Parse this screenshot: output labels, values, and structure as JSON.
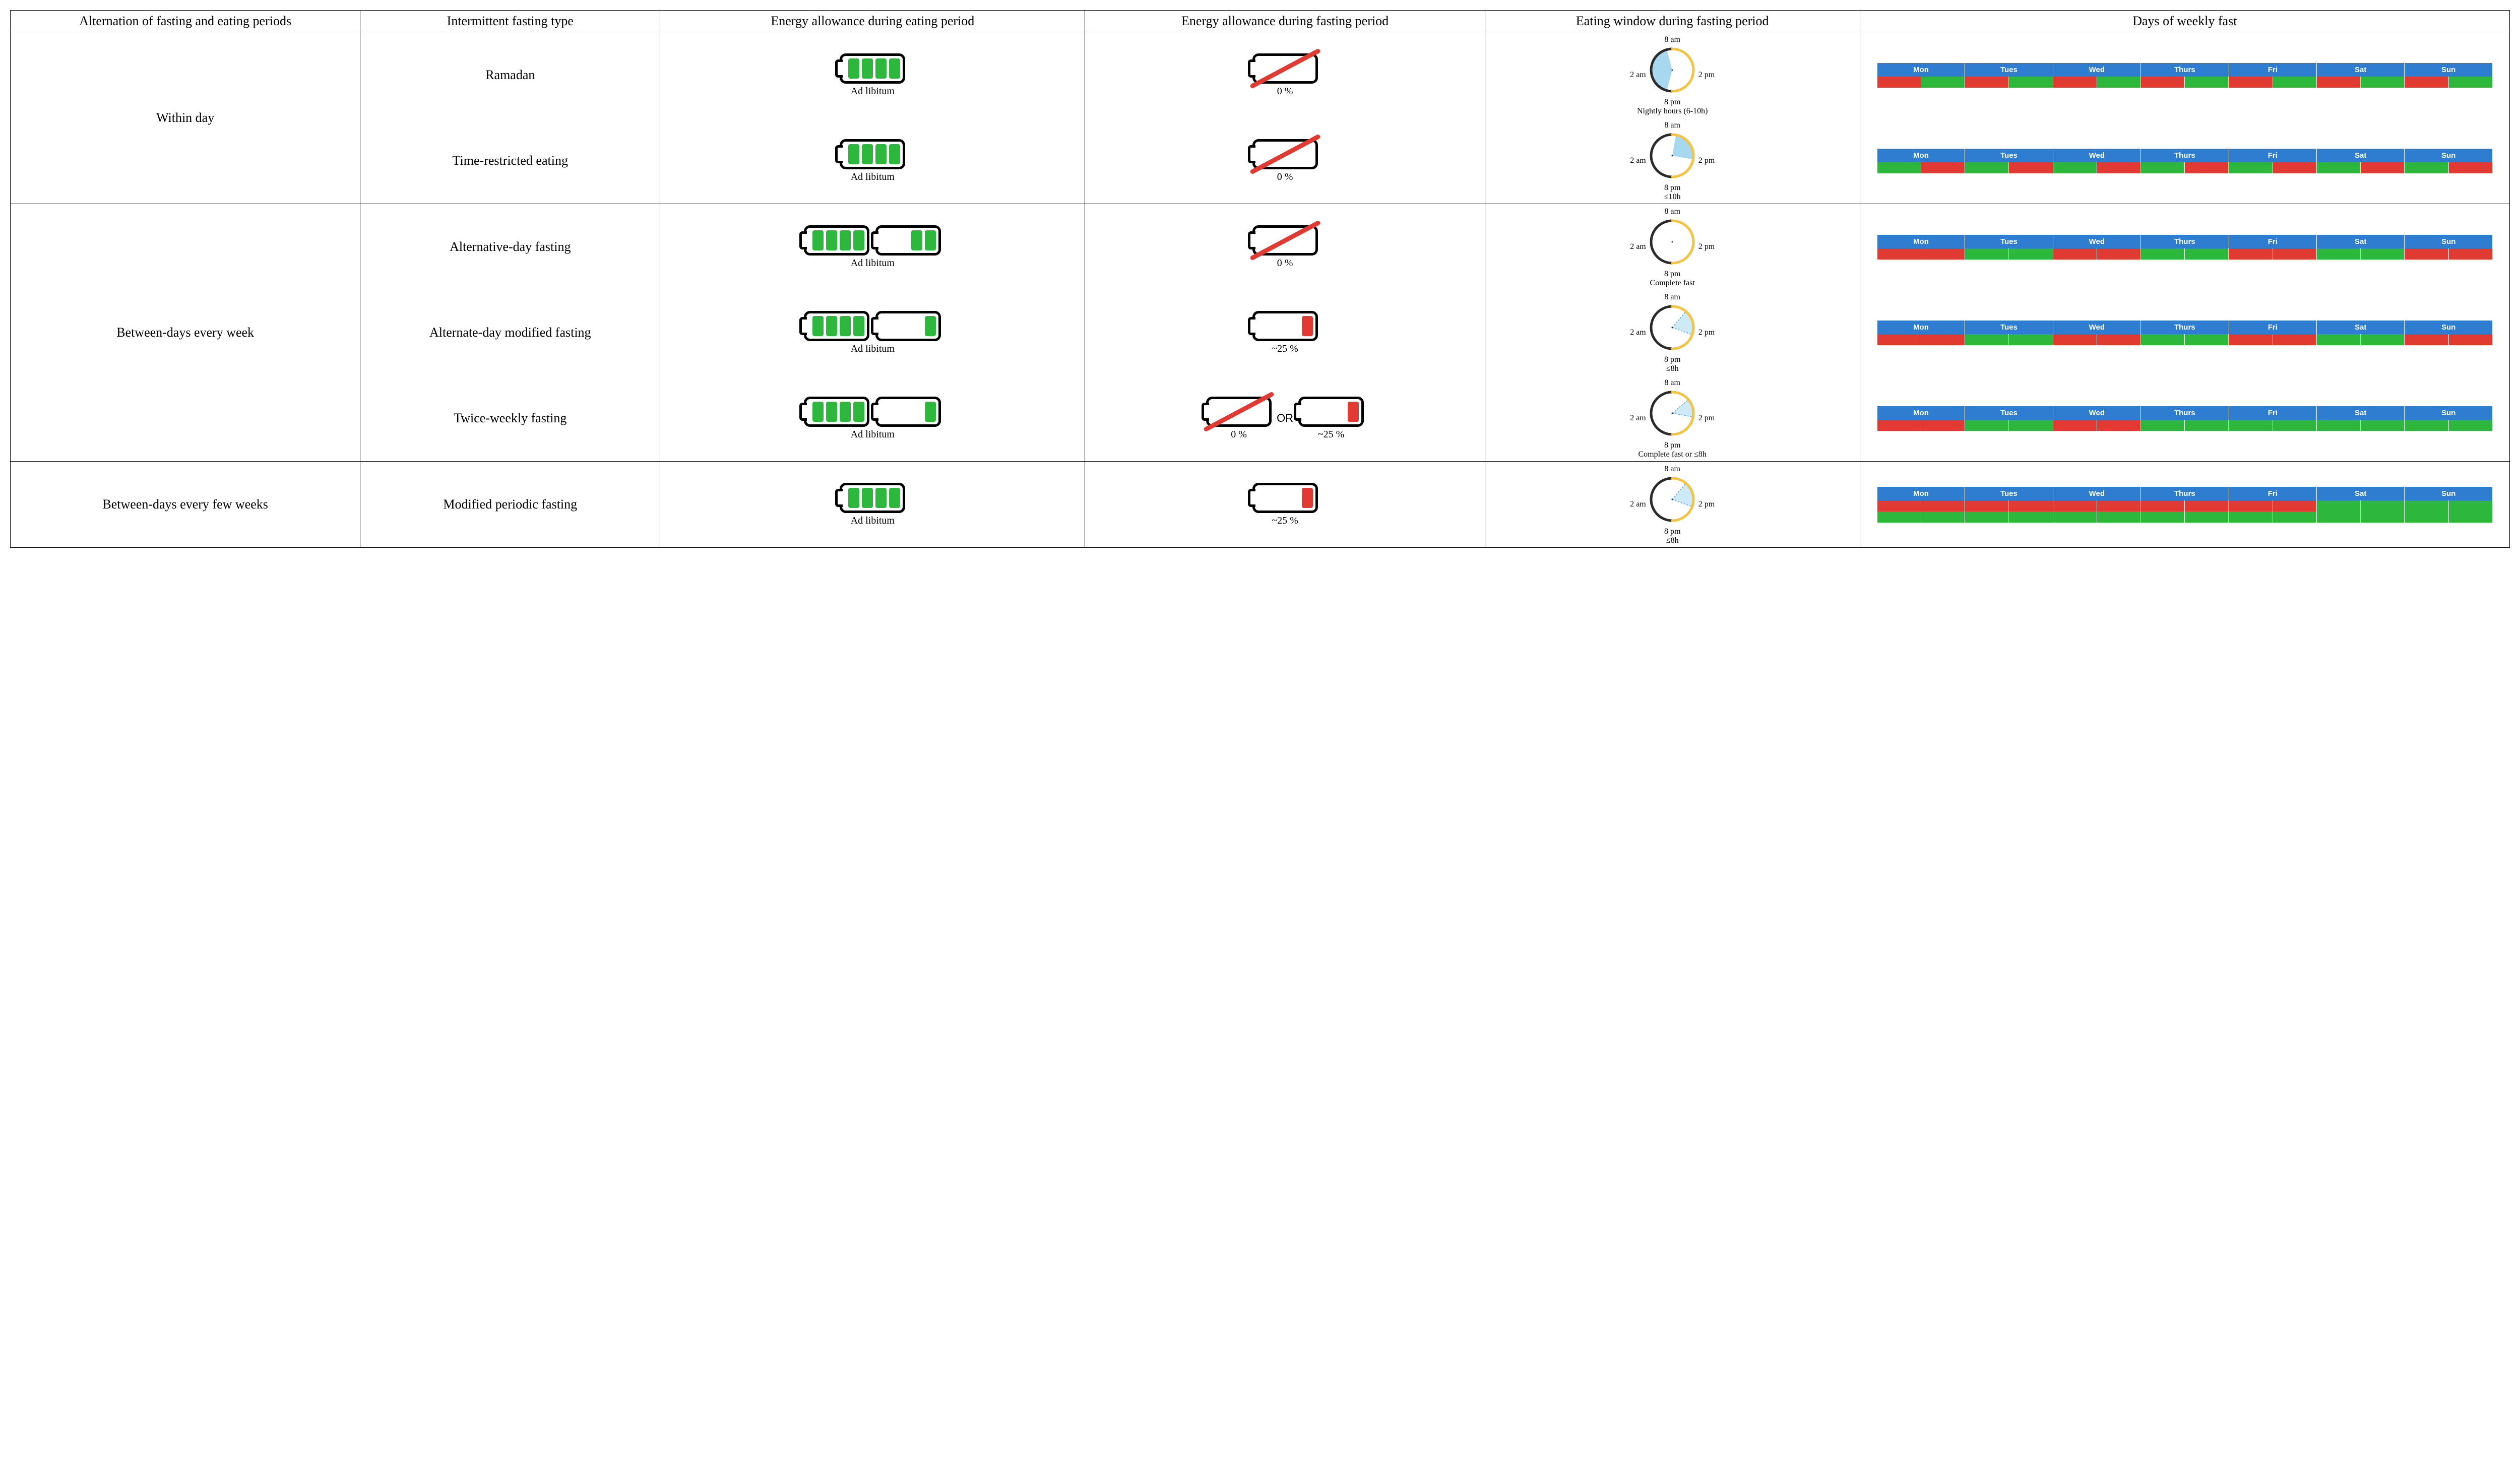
{
  "colors": {
    "green": "#2db83d",
    "red": "#e03a33",
    "blue": "#2f7dd1",
    "lightblue": "#a7d8f0",
    "yellow": "#f5c342",
    "dark": "#2b2b2b",
    "border": "#000000",
    "bg": "#ffffff"
  },
  "fonts": {
    "body_family": "Palatino Linotype",
    "body_size_pt": 20,
    "header_size_pt": 20,
    "caption_size_pt": 15,
    "week_label_size_pt": 11
  },
  "headers": [
    "Alternation of fasting and eating periods",
    "Intermittent fasting type",
    "Energy allowance during eating period",
    "Energy allowance during fasting period",
    "Eating window during fasting period",
    "Days of weekly fast"
  ],
  "week_days": [
    "Mon",
    "Tues",
    "Wed",
    "Thurs",
    "Fri",
    "Sat",
    "Sun"
  ],
  "clock_labels": {
    "top": "8 am",
    "right": "2 pm",
    "bottom": "8 pm",
    "left": "2 am"
  },
  "ad_libitum_label": "Ad libitum",
  "or_label": "OR",
  "groups": [
    {
      "label": "Within day",
      "rows": [
        {
          "type": "Ramadan",
          "eating": {
            "batteries": [
              {
                "cells": [
                  "g",
                  "g",
                  "g",
                  "g"
                ],
                "slash": false
              }
            ],
            "caption": "Ad libitum"
          },
          "fasting": {
            "batteries": [
              {
                "cells": [],
                "slash": true,
                "caption": "0 %"
              }
            ]
          },
          "window": {
            "style": "night",
            "caption": "Nightly hours (6-10h)",
            "wedge": {
              "start": 195,
              "end": 345,
              "fill": "#a7d8f0",
              "dashed": false
            }
          },
          "week": {
            "rows": [
              [
                "R",
                "G",
                "R",
                "G",
                "R",
                "G",
                "R",
                "G",
                "R",
                "G",
                "R",
                "G",
                "R",
                "G"
              ]
            ]
          }
        },
        {
          "type": "Time-restricted eating",
          "eating": {
            "batteries": [
              {
                "cells": [
                  "g",
                  "g",
                  "g",
                  "g"
                ],
                "slash": false
              }
            ],
            "caption": "Ad libitum"
          },
          "fasting": {
            "batteries": [
              {
                "cells": [],
                "slash": true,
                "caption": "0 %"
              }
            ]
          },
          "window": {
            "style": "slice",
            "caption": "≤10h",
            "wedge": {
              "start": 10,
              "end": 100,
              "fill": "#a7d8f0",
              "dashed": false
            }
          },
          "week": {
            "rows": [
              [
                "G",
                "R",
                "G",
                "R",
                "G",
                "R",
                "G",
                "R",
                "G",
                "R",
                "G",
                "R",
                "G",
                "R"
              ]
            ]
          }
        }
      ]
    },
    {
      "label": "Between-days every week",
      "rows": [
        {
          "type": "Alternative-day fasting",
          "eating": {
            "batteries": [
              {
                "cells": [
                  "g",
                  "g",
                  "g",
                  "g"
                ],
                "slash": false
              },
              {
                "cells": [
                  "g",
                  "g"
                ],
                "slash": false
              }
            ],
            "caption": "Ad libitum"
          },
          "fasting": {
            "batteries": [
              {
                "cells": [],
                "slash": true,
                "caption": "0 %"
              }
            ]
          },
          "window": {
            "style": "empty",
            "caption": "Complete fast",
            "wedge": null
          },
          "week": {
            "rows": [
              [
                "R",
                "R",
                "G",
                "G",
                "R",
                "R",
                "G",
                "G",
                "R",
                "R",
                "G",
                "G",
                "R",
                "R"
              ]
            ]
          }
        },
        {
          "type": "Alternate-day modified fasting",
          "eating": {
            "batteries": [
              {
                "cells": [
                  "g",
                  "g",
                  "g",
                  "g"
                ],
                "slash": false
              },
              {
                "cells": [
                  "g"
                ],
                "slash": false
              }
            ],
            "caption": "Ad libitum"
          },
          "fasting": {
            "batteries": [
              {
                "cells": [
                  "r"
                ],
                "slash": false,
                "caption": "~25 %"
              }
            ]
          },
          "window": {
            "style": "slice",
            "caption": "≤8h",
            "wedge": {
              "start": 40,
              "end": 110,
              "fill": "#a7d8f0",
              "dashed": true
            }
          },
          "week": {
            "rows": [
              [
                "R",
                "R",
                "G",
                "G",
                "R",
                "R",
                "G",
                "G",
                "R",
                "R",
                "G",
                "G",
                "R",
                "R"
              ]
            ]
          }
        },
        {
          "type": "Twice-weekly fasting",
          "eating": {
            "batteries": [
              {
                "cells": [
                  "g",
                  "g",
                  "g",
                  "g"
                ],
                "slash": false
              },
              {
                "cells": [
                  "g"
                ],
                "slash": false
              }
            ],
            "caption": "Ad libitum"
          },
          "fasting": {
            "batteries": [
              {
                "cells": [],
                "slash": true,
                "caption": "0 %"
              },
              {
                "cells": [
                  "r"
                ],
                "slash": false,
                "caption": "~25 %"
              }
            ],
            "or": true
          },
          "window": {
            "style": "slice",
            "caption": "Complete fast or ≤8h",
            "wedge": {
              "start": 50,
              "end": 100,
              "fill": "#a7d8f0",
              "dashed": true
            }
          },
          "week": {
            "rows": [
              [
                "R",
                "R",
                "G",
                "G",
                "R",
                "R",
                "G",
                "G",
                "G",
                "G",
                "G",
                "G",
                "G",
                "G"
              ]
            ]
          }
        }
      ]
    },
    {
      "label": "Between-days every few weeks",
      "rows": [
        {
          "type": "Modified periodic fasting",
          "type_hyphen": "Modified peri-\nodic fasting",
          "eating": {
            "batteries": [
              {
                "cells": [
                  "g",
                  "g",
                  "g",
                  "g"
                ],
                "slash": false
              }
            ],
            "caption": "Ad libitum"
          },
          "fasting": {
            "batteries": [
              {
                "cells": [
                  "r"
                ],
                "slash": false,
                "caption": "~25 %"
              }
            ]
          },
          "window": {
            "style": "slice",
            "caption": "≤8h",
            "wedge": {
              "start": 40,
              "end": 110,
              "fill": "#a7d8f0",
              "dashed": true
            }
          },
          "week": {
            "rows": [
              [
                "R",
                "R",
                "R",
                "R",
                "R",
                "R",
                "R",
                "R",
                "R",
                "R",
                "G",
                "G",
                "G",
                "G"
              ],
              [
                "G",
                "G",
                "G",
                "G",
                "G",
                "G",
                "G",
                "G",
                "G",
                "G",
                "G",
                "G",
                "G",
                "G"
              ]
            ]
          }
        }
      ]
    }
  ]
}
